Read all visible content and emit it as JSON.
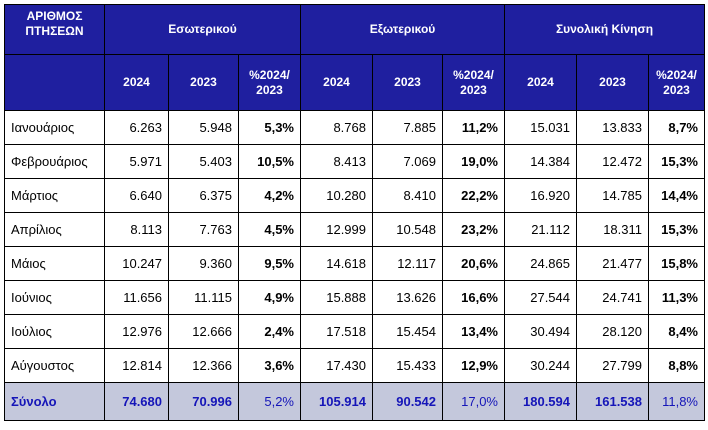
{
  "header": {
    "row_label": "ΑΡΙΘΜΟΣ ΠΤΗΣΕΩΝ",
    "groups": [
      "Εσωτερικού",
      "Εξωτερικού",
      "Συνολική Κίνηση"
    ],
    "subcolumns": [
      "2024",
      "2023",
      "%2024/ 2023"
    ]
  },
  "rows": [
    {
      "month": "Ιανουάριος",
      "values": [
        "6.263",
        "5.948",
        "5,3%",
        "8.768",
        "7.885",
        "11,2%",
        "15.031",
        "13.833",
        "8,7%"
      ]
    },
    {
      "month": "Φεβρουάριος",
      "values": [
        "5.971",
        "5.403",
        "10,5%",
        "8.413",
        "7.069",
        "19,0%",
        "14.384",
        "12.472",
        "15,3%"
      ]
    },
    {
      "month": "Μάρτιος",
      "values": [
        "6.640",
        "6.375",
        "4,2%",
        "10.280",
        "8.410",
        "22,2%",
        "16.920",
        "14.785",
        "14,4%"
      ]
    },
    {
      "month": "Απρίλιος",
      "values": [
        "8.113",
        "7.763",
        "4,5%",
        "12.999",
        "10.548",
        "23,2%",
        "21.112",
        "18.311",
        "15,3%"
      ]
    },
    {
      "month": "Μάιος",
      "values": [
        "10.247",
        "9.360",
        "9,5%",
        "14.618",
        "12.117",
        "20,6%",
        "24.865",
        "21.477",
        "15,8%"
      ]
    },
    {
      "month": "Ιούνιος",
      "values": [
        "11.656",
        "11.115",
        "4,9%",
        "15.888",
        "13.626",
        "16,6%",
        "27.544",
        "24.741",
        "11,3%"
      ]
    },
    {
      "month": "Ιούλιος",
      "values": [
        "12.976",
        "12.666",
        "2,4%",
        "17.518",
        "15.454",
        "13,4%",
        "30.494",
        "28.120",
        "8,4%"
      ]
    },
    {
      "month": "Αύγουστος",
      "values": [
        "12.814",
        "12.366",
        "3,6%",
        "17.430",
        "15.433",
        "12,9%",
        "30.244",
        "27.799",
        "8,8%"
      ]
    }
  ],
  "total": {
    "label": "Σύνολο",
    "values": [
      "74.680",
      "70.996",
      "5,2%",
      "105.914",
      "90.542",
      "17,0%",
      "180.594",
      "161.538",
      "11,8%"
    ]
  }
}
